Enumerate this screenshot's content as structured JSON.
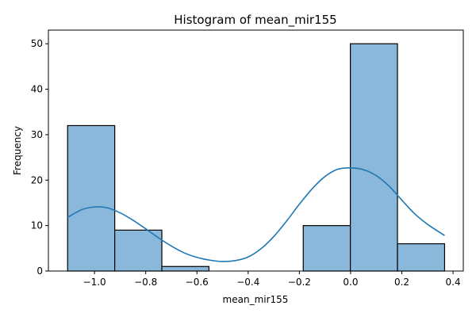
{
  "chart_data": {
    "type": "bar",
    "title": "Histogram of mean_mir155",
    "xlabel": "mean_mir155",
    "ylabel": "Frequency",
    "xlim": [
      -1.18,
      0.44
    ],
    "ylim": [
      0,
      53
    ],
    "xticks": [
      -1.0,
      -0.8,
      -0.6,
      -0.4,
      -0.2,
      0.0,
      0.2,
      0.4
    ],
    "xtick_labels": [
      "−1.0",
      "−0.8",
      "−0.6",
      "−0.4",
      "−0.2",
      "0.0",
      "0.2",
      "0.4"
    ],
    "yticks": [
      0,
      10,
      20,
      30,
      40,
      50
    ],
    "ytick_labels": [
      "0",
      "10",
      "20",
      "30",
      "40",
      "50"
    ],
    "bins": [
      {
        "x0": -1.105,
        "x1": -0.921,
        "count": 32
      },
      {
        "x0": -0.921,
        "x1": -0.737,
        "count": 9
      },
      {
        "x0": -0.737,
        "x1": -0.553,
        "count": 1
      },
      {
        "x0": -0.553,
        "x1": -0.369,
        "count": 0
      },
      {
        "x0": -0.369,
        "x1": -0.185,
        "count": 0
      },
      {
        "x0": -0.185,
        "x1": -0.001,
        "count": 10
      },
      {
        "x0": -0.001,
        "x1": 0.183,
        "count": 50
      },
      {
        "x0": 0.183,
        "x1": 0.367,
        "count": 6
      }
    ],
    "kde": {
      "x": [
        -1.105,
        -1.05,
        -1.0,
        -0.95,
        -0.9,
        -0.85,
        -0.8,
        -0.75,
        -0.7,
        -0.65,
        -0.6,
        -0.55,
        -0.5,
        -0.45,
        -0.4,
        -0.35,
        -0.3,
        -0.25,
        -0.2,
        -0.15,
        -0.1,
        -0.05,
        0.0,
        0.05,
        0.1,
        0.15,
        0.2,
        0.25,
        0.3,
        0.367
      ],
      "y": [
        11.8,
        13.5,
        14.1,
        13.9,
        12.8,
        11.2,
        9.3,
        7.3,
        5.5,
        4.0,
        3.0,
        2.4,
        2.1,
        2.3,
        3.1,
        4.9,
        7.6,
        11.0,
        14.7,
        18.1,
        20.8,
        22.4,
        22.7,
        22.3,
        21.0,
        18.7,
        15.6,
        12.6,
        10.3,
        7.8
      ]
    },
    "colors": {
      "bar_fill": "#8ab8da",
      "bar_edge": "#000000",
      "kde_line": "#1f77b4"
    },
    "grid": false,
    "legend": "none"
  }
}
